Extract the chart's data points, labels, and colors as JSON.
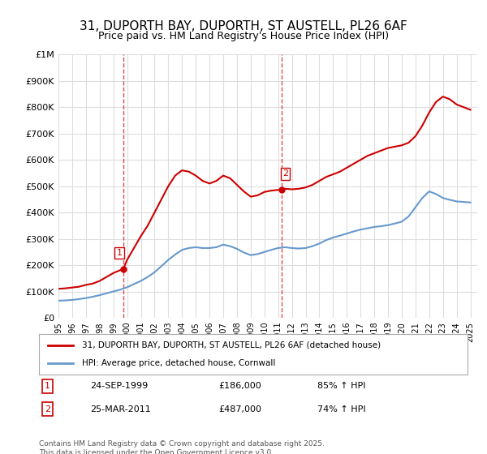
{
  "title": "31, DUPORTH BAY, DUPORTH, ST AUSTELL, PL26 6AF",
  "subtitle": "Price paid vs. HM Land Registry's House Price Index (HPI)",
  "title_fontsize": 11,
  "subtitle_fontsize": 9,
  "xlabel": "",
  "ylabel": "",
  "ylim": [
    0,
    1000000
  ],
  "xlim_start": 1995.0,
  "xlim_end": 2025.5,
  "background_color": "#ffffff",
  "grid_color": "#dddddd",
  "red_line_color": "#cc0000",
  "blue_line_color": "#6699cc",
  "marker1_x": 1999.73,
  "marker1_y": 186000,
  "marker2_x": 2011.23,
  "marker2_y": 487000,
  "legend_label_red": "31, DUPORTH BAY, DUPORTH, ST AUSTELL, PL26 6AF (detached house)",
  "legend_label_blue": "HPI: Average price, detached house, Cornwall",
  "note1_label": "1",
  "note1_date": "24-SEP-1999",
  "note1_price": "£186,000",
  "note1_hpi": "85% ↑ HPI",
  "note2_label": "2",
  "note2_date": "25-MAR-2011",
  "note2_price": "£487,000",
  "note2_hpi": "74% ↑ HPI",
  "footer": "Contains HM Land Registry data © Crown copyright and database right 2025.\nThis data is licensed under the Open Government Licence v3.0.",
  "red_line": {
    "x": [
      1995.0,
      1995.5,
      1996.0,
      1996.5,
      1997.0,
      1997.5,
      1998.0,
      1998.5,
      1999.0,
      1999.73,
      2000.0,
      2000.5,
      2001.0,
      2001.5,
      2002.0,
      2002.5,
      2003.0,
      2003.5,
      2004.0,
      2004.5,
      2005.0,
      2005.5,
      2006.0,
      2006.5,
      2007.0,
      2007.5,
      2008.0,
      2008.5,
      2009.0,
      2009.5,
      2010.0,
      2010.5,
      2011.23,
      2011.5,
      2012.0,
      2012.5,
      2013.0,
      2013.5,
      2014.0,
      2014.5,
      2015.0,
      2015.5,
      2016.0,
      2016.5,
      2017.0,
      2017.5,
      2018.0,
      2018.5,
      2019.0,
      2019.5,
      2020.0,
      2020.5,
      2021.0,
      2021.5,
      2022.0,
      2022.5,
      2023.0,
      2023.5,
      2024.0,
      2024.5,
      2025.0
    ],
    "y": [
      110000,
      112000,
      115000,
      118000,
      125000,
      130000,
      140000,
      155000,
      170000,
      186000,
      220000,
      265000,
      310000,
      350000,
      400000,
      450000,
      500000,
      540000,
      560000,
      555000,
      540000,
      520000,
      510000,
      520000,
      540000,
      530000,
      505000,
      480000,
      460000,
      465000,
      478000,
      483000,
      487000,
      490000,
      488000,
      490000,
      495000,
      505000,
      520000,
      535000,
      545000,
      555000,
      570000,
      585000,
      600000,
      615000,
      625000,
      635000,
      645000,
      650000,
      655000,
      665000,
      690000,
      730000,
      780000,
      820000,
      840000,
      830000,
      810000,
      800000,
      790000
    ]
  },
  "blue_line": {
    "x": [
      1995.0,
      1995.5,
      1996.0,
      1996.5,
      1997.0,
      1997.5,
      1998.0,
      1998.5,
      1999.0,
      1999.5,
      2000.0,
      2000.5,
      2001.0,
      2001.5,
      2002.0,
      2002.5,
      2003.0,
      2003.5,
      2004.0,
      2004.5,
      2005.0,
      2005.5,
      2006.0,
      2006.5,
      2007.0,
      2007.5,
      2008.0,
      2008.5,
      2009.0,
      2009.5,
      2010.0,
      2010.5,
      2011.0,
      2011.5,
      2012.0,
      2012.5,
      2013.0,
      2013.5,
      2014.0,
      2014.5,
      2015.0,
      2015.5,
      2016.0,
      2016.5,
      2017.0,
      2017.5,
      2018.0,
      2018.5,
      2019.0,
      2019.5,
      2020.0,
      2020.5,
      2021.0,
      2021.5,
      2022.0,
      2022.5,
      2023.0,
      2023.5,
      2024.0,
      2024.5,
      2025.0
    ],
    "y": [
      65000,
      66000,
      68000,
      71000,
      75000,
      80000,
      86000,
      93000,
      100000,
      107000,
      116000,
      128000,
      140000,
      155000,
      173000,
      196000,
      220000,
      240000,
      258000,
      265000,
      268000,
      265000,
      265000,
      268000,
      278000,
      272000,
      262000,
      248000,
      238000,
      242000,
      250000,
      258000,
      265000,
      268000,
      265000,
      263000,
      265000,
      272000,
      282000,
      295000,
      305000,
      312000,
      320000,
      328000,
      335000,
      340000,
      345000,
      348000,
      352000,
      358000,
      365000,
      385000,
      420000,
      455000,
      480000,
      470000,
      455000,
      448000,
      442000,
      440000,
      438000
    ]
  }
}
